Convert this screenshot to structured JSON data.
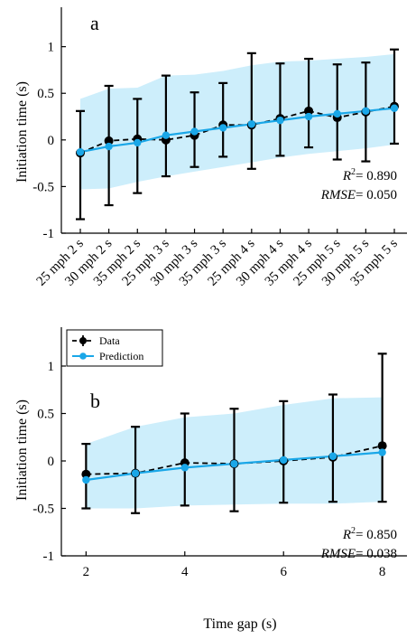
{
  "chart_data": [
    {
      "type": "line",
      "panel_label": "a",
      "categories": [
        "25 mph 2 s",
        "30 mph 2 s",
        "35 mph 2 s",
        "25 mph 3 s",
        "30 mph 3 s",
        "35 mph 3 s",
        "25 mph 4 s",
        "30 mph 4 s",
        "35 mph 4 s",
        "25 mph 5 s",
        "30 mph 5 s",
        "35 mph 5 s"
      ],
      "ylabel": "Initiation time (s)",
      "xlabel": "",
      "ylim": [
        -1,
        1.2
      ],
      "yticks": [
        -1,
        -0.5,
        0,
        0.5,
        1
      ],
      "ytick_labels": [
        "-1",
        "-0.5",
        "0",
        "0.5",
        "1"
      ],
      "series": [
        {
          "name": "Data",
          "color": "#000000",
          "style": "dashed-with-errorbars",
          "values": [
            -0.14,
            -0.01,
            0.01,
            0.0,
            0.05,
            0.16,
            0.16,
            0.23,
            0.31,
            0.24,
            0.3,
            0.36
          ],
          "error_low": [
            -0.85,
            -0.7,
            -0.57,
            -0.39,
            -0.29,
            -0.18,
            -0.31,
            -0.17,
            -0.08,
            -0.21,
            -0.23,
            -0.04
          ],
          "error_high": [
            0.31,
            0.58,
            0.44,
            0.69,
            0.51,
            0.61,
            0.93,
            0.82,
            0.87,
            0.81,
            0.83,
            0.97
          ]
        },
        {
          "name": "Prediction",
          "color": "#1aa7e8",
          "style": "solid-with-band",
          "values": [
            -0.13,
            -0.07,
            -0.03,
            0.05,
            0.09,
            0.13,
            0.17,
            0.21,
            0.25,
            0.28,
            0.31,
            0.34
          ],
          "band_low": [
            -0.53,
            -0.52,
            -0.45,
            -0.39,
            -0.34,
            -0.29,
            -0.24,
            -0.19,
            -0.15,
            -0.12,
            -0.09,
            -0.05
          ],
          "band_high": [
            0.44,
            0.55,
            0.56,
            0.69,
            0.7,
            0.74,
            0.8,
            0.84,
            0.85,
            0.87,
            0.89,
            0.92
          ]
        }
      ],
      "annotation": {
        "r2_label": "R",
        "r2_value": "= 0.890",
        "rmse_label": "RMSE",
        "rmse_value": "= 0.050"
      },
      "legend": "none",
      "grid": false
    },
    {
      "type": "line",
      "panel_label": "b",
      "x": [
        2,
        3,
        4,
        5,
        6,
        7,
        8
      ],
      "xticks": [
        2,
        4,
        6,
        8
      ],
      "xtick_labels": [
        "2",
        "4",
        "6",
        "8"
      ],
      "xlim": [
        1.5,
        8.5
      ],
      "xlabel": "Time gap (s)",
      "ylabel": "Initiation time (s)",
      "ylim": [
        -1,
        1.2
      ],
      "yticks": [
        -1,
        -0.5,
        0,
        0.5,
        1
      ],
      "ytick_labels": [
        "-1",
        "-0.5",
        "0",
        "0.5",
        "1"
      ],
      "series": [
        {
          "name": "Data",
          "color": "#000000",
          "style": "dashed-with-errorbars",
          "values": [
            -0.14,
            -0.13,
            -0.02,
            -0.03,
            0.0,
            0.04,
            0.16
          ],
          "error_low": [
            -0.5,
            -0.55,
            -0.47,
            -0.53,
            -0.44,
            -0.43,
            -0.43
          ],
          "error_high": [
            0.18,
            0.36,
            0.5,
            0.55,
            0.63,
            0.7,
            1.13
          ]
        },
        {
          "name": "Prediction",
          "color": "#1aa7e8",
          "style": "solid-with-band",
          "values": [
            -0.2,
            -0.13,
            -0.07,
            -0.03,
            0.01,
            0.05,
            0.09
          ],
          "band_low": [
            -0.5,
            -0.5,
            -0.47,
            -0.46,
            -0.45,
            -0.45,
            -0.43
          ],
          "band_high": [
            0.18,
            0.36,
            0.46,
            0.5,
            0.59,
            0.66,
            0.67
          ]
        }
      ],
      "annotation": {
        "r2_label": "R",
        "r2_value": "= 0.850",
        "rmse_label": "RMSE",
        "rmse_value": "= 0.038"
      },
      "legend": "top-left",
      "grid": false
    }
  ]
}
